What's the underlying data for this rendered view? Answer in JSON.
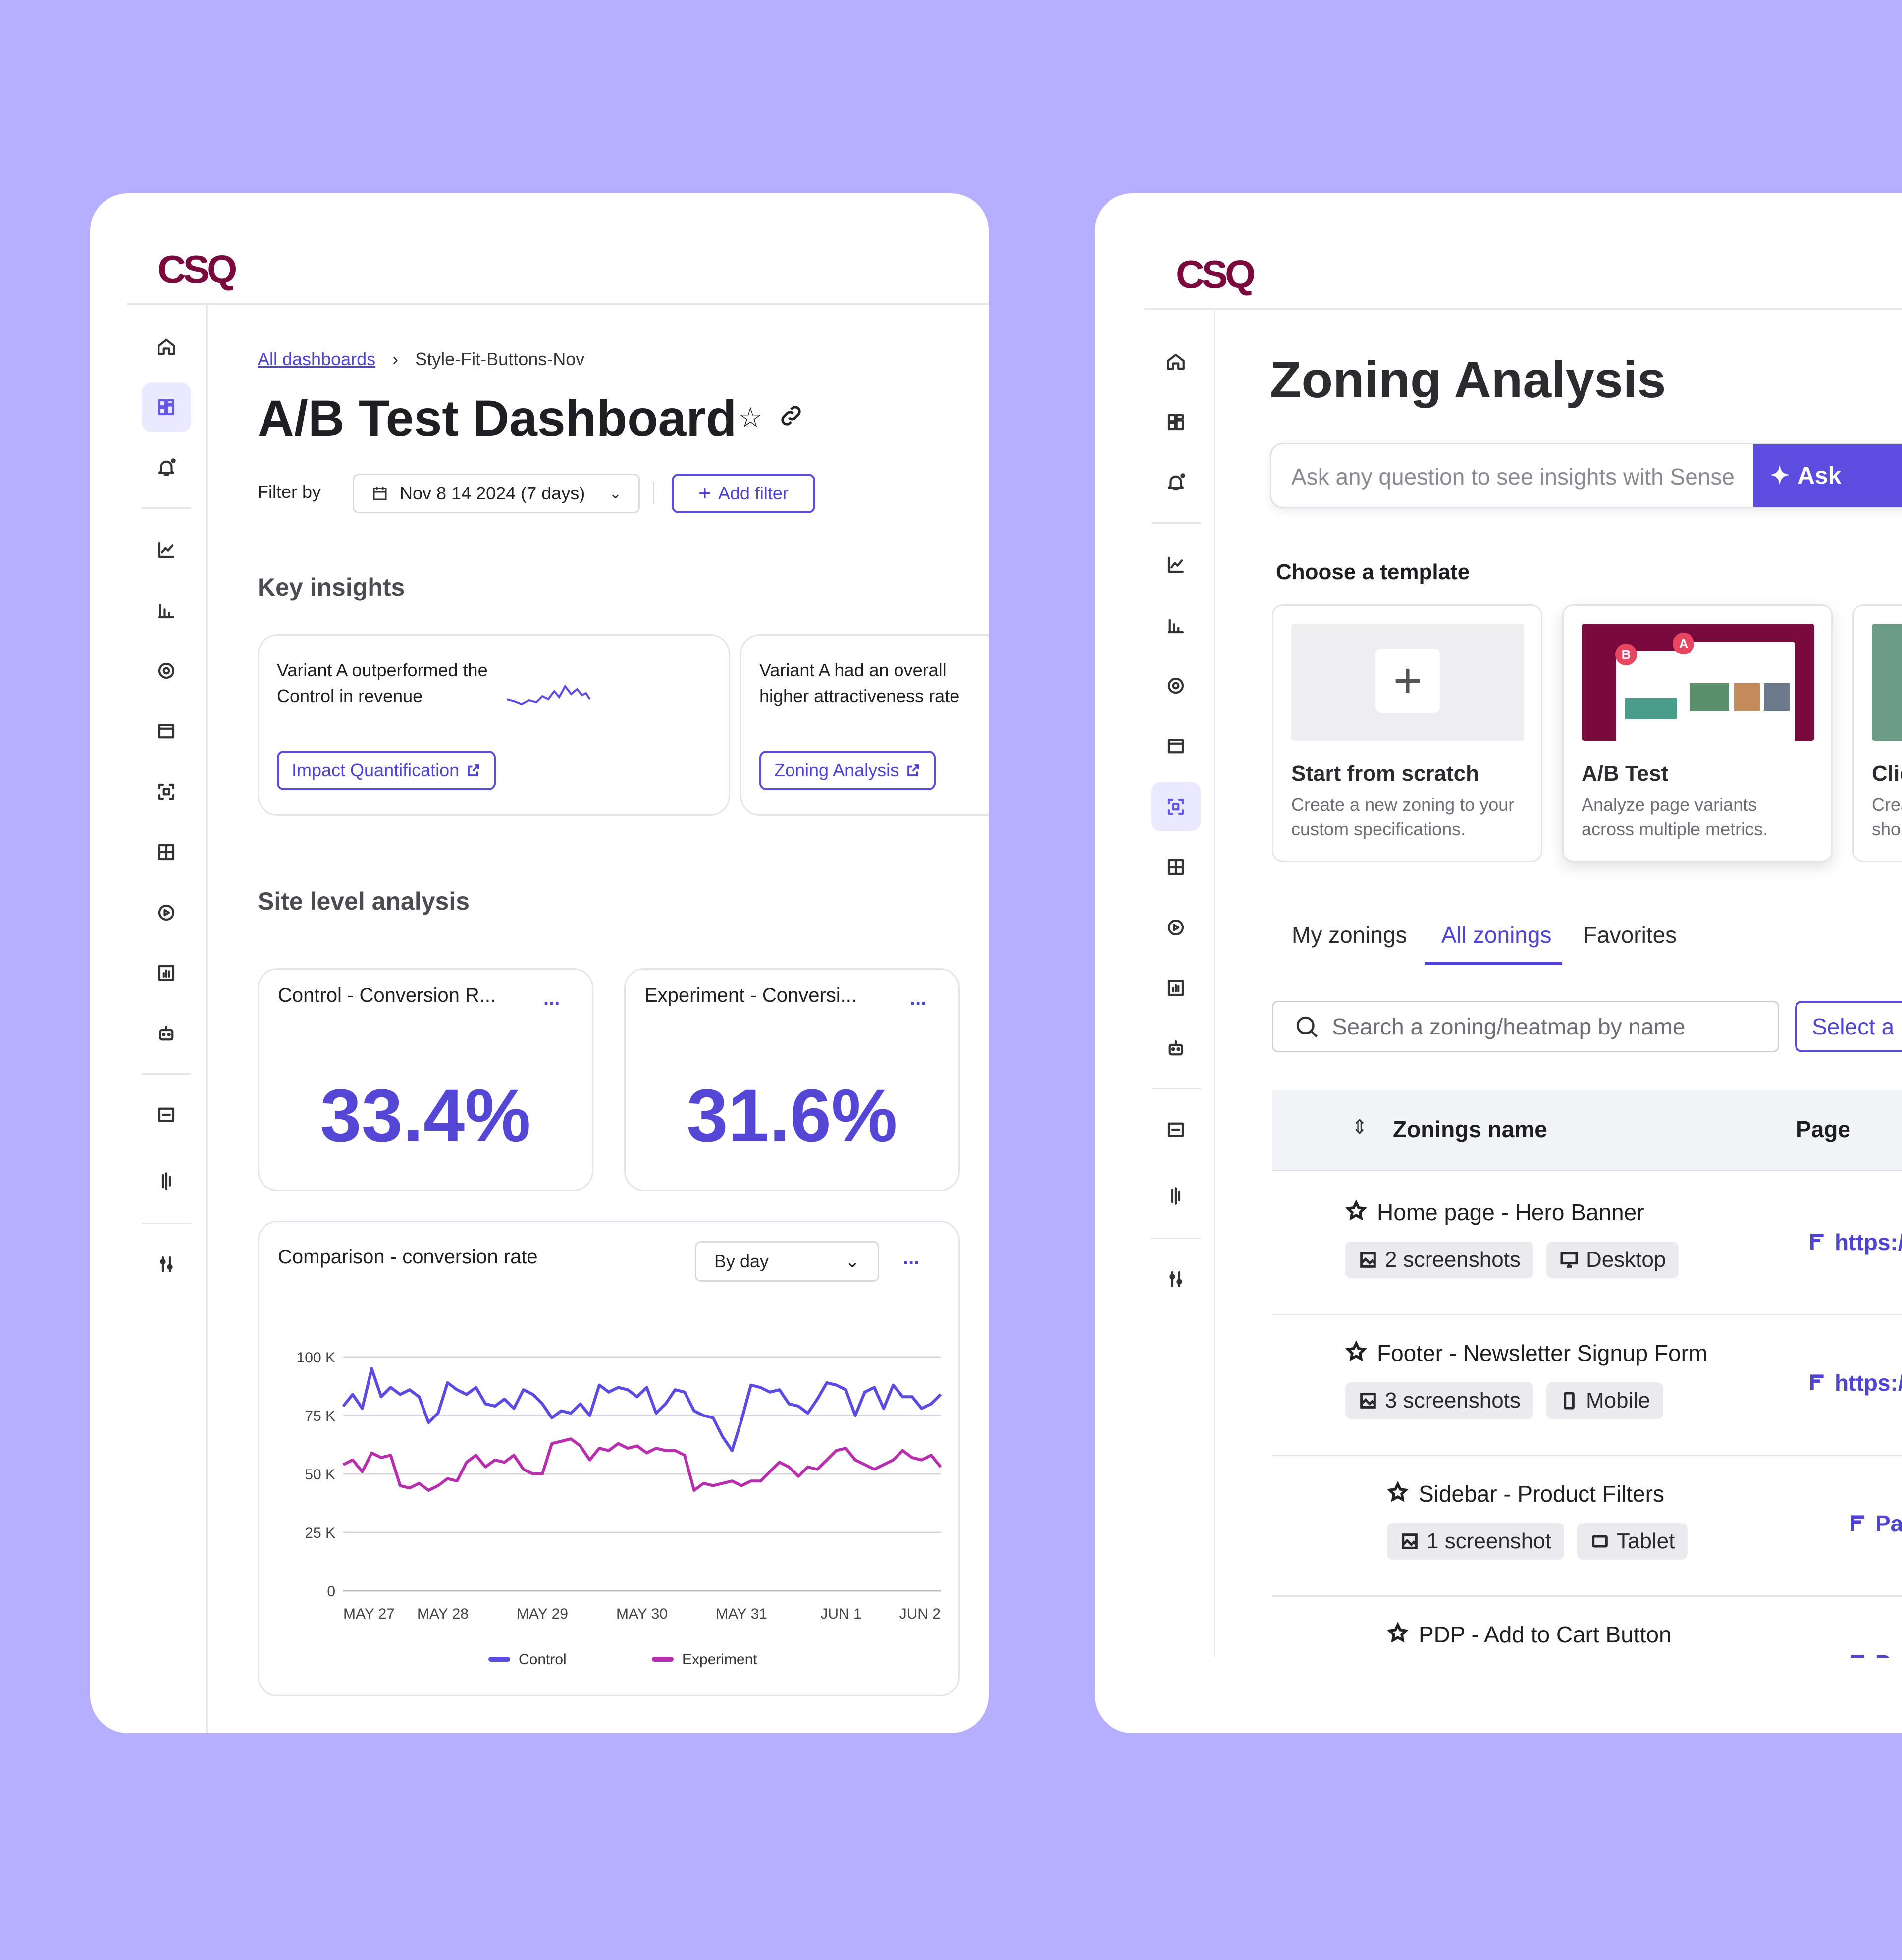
{
  "left": {
    "logo": "CSQ",
    "breadcrumb": {
      "parent": "All dashboards",
      "current": "Style-Fit-Buttons-Nov"
    },
    "title": "A/B Test Dashboard",
    "filter": {
      "label": "Filter by",
      "date": "Nov 8 14 2024 (7 days)",
      "add": "Add filter"
    },
    "key_insights": {
      "heading": "Key insights",
      "cards": [
        {
          "line1": "Variant A outperformed the",
          "line2": "Control in revenue",
          "link": "Impact Quantification"
        },
        {
          "line1": "Variant A had an overall",
          "line2": "higher attractiveness rate",
          "link": "Zoning Analysis"
        }
      ]
    },
    "site_level": {
      "heading": "Site level analysis",
      "metrics": [
        {
          "title": "Control - Conversion R...",
          "value": "33.4%",
          "menu": "..."
        },
        {
          "title": "Experiment - Conversi...",
          "value": "31.6%",
          "menu": "..."
        }
      ]
    },
    "comparison": {
      "title": "Comparison - conversion rate",
      "select": "By day",
      "menu": "..."
    }
  },
  "chart_data": {
    "type": "line",
    "title": "Comparison - conversion rate",
    "xlabel": "",
    "ylabel": "",
    "y_ticks": [
      "100 K",
      "75 K",
      "50 K",
      "25 K",
      "0"
    ],
    "x_ticks": [
      "MAY 27",
      "MAY 28",
      "MAY 29",
      "MAY 30",
      "MAY 31",
      "JUN 1",
      "JUN 2"
    ],
    "ylim": [
      0,
      100000
    ],
    "grid": true,
    "legend_position": "bottom",
    "series": [
      {
        "name": "Control",
        "color": "#5b4be0",
        "values": [
          79000,
          84000,
          78000,
          95000,
          83000,
          87000,
          84000,
          86000,
          83000,
          72000,
          76000,
          89000,
          86000,
          84000,
          87000,
          80000,
          79000,
          82000,
          78000,
          86000,
          84000,
          80000,
          74000,
          77000,
          76000,
          80000,
          75000,
          88000,
          85000,
          87000,
          86000,
          83000,
          87000,
          76000,
          80000,
          86000,
          85000,
          77000,
          75000,
          74000,
          66000,
          60000,
          73000,
          88000,
          87000,
          85000,
          86000,
          80000,
          79000,
          76000,
          82000,
          89000,
          88000,
          86000,
          75000,
          85000,
          87000,
          78000,
          88000,
          83000,
          83000,
          78000,
          80000,
          84000
        ]
      },
      {
        "name": "Experiment",
        "color": "#b82fae",
        "values": [
          54000,
          56000,
          51000,
          59000,
          57000,
          58000,
          45000,
          44000,
          46000,
          43000,
          45000,
          48000,
          47000,
          55000,
          58000,
          53000,
          56000,
          55000,
          58000,
          52000,
          50000,
          50000,
          63000,
          64000,
          65000,
          62000,
          56000,
          61000,
          60000,
          63000,
          61000,
          62000,
          59000,
          61000,
          60000,
          60000,
          58000,
          43000,
          46000,
          45000,
          46000,
          47000,
          45000,
          47000,
          47000,
          51000,
          55000,
          53000,
          49000,
          53000,
          52000,
          56000,
          60000,
          61000,
          56000,
          54000,
          52000,
          54000,
          56000,
          60000,
          57000,
          56000,
          58000,
          53000
        ]
      }
    ]
  },
  "right": {
    "logo": "CSQ",
    "title": "Zoning Analysis",
    "ask": {
      "placeholder": "Ask any question to see insights with Sense",
      "button": "Ask"
    },
    "templates": {
      "heading": "Choose a template",
      "items": [
        {
          "title": "Start from scratch",
          "desc1": "Create a new zoning to your",
          "desc2": "custom specifications."
        },
        {
          "title": "A/B Test",
          "desc1": "Analyze page variants",
          "desc2": "across multiple metrics."
        },
        {
          "title": "Clic",
          "desc1": "Crea",
          "desc2": "sho"
        }
      ],
      "ab_badges": [
        "B",
        "A"
      ]
    },
    "tabs": [
      "My zonings",
      "All zonings",
      "Favorites"
    ],
    "search": {
      "placeholder": "Search a zoning/heatmap by name",
      "select": "Select a"
    },
    "table": {
      "col_name": "Zonings name",
      "col_page": "Page",
      "rows": [
        {
          "name": "Home page - Hero Banner",
          "shots": "2 screenshots",
          "device": "Desktop",
          "page": "https:/"
        },
        {
          "name": "Footer - Newsletter Signup Form",
          "shots": "3 screenshots",
          "device": "Mobile",
          "page": "https:/"
        },
        {
          "name": "Sidebar - Product Filters",
          "shots": "1 screenshot",
          "device": "Tablet",
          "page": "Pa"
        },
        {
          "name": "PDP - Add to Cart Button",
          "page": "Pa"
        }
      ]
    }
  }
}
